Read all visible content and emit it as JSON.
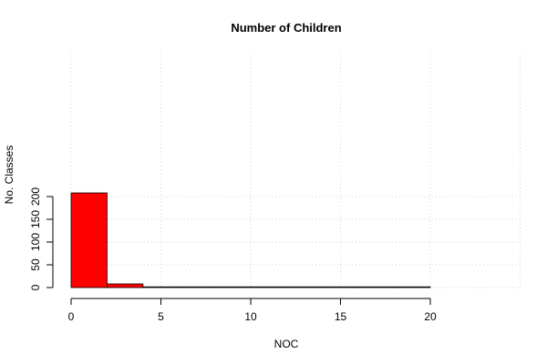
{
  "chart_data": {
    "type": "bar",
    "subtype": "histogram",
    "title": "Number of Children",
    "xlabel": "NOC",
    "ylabel": "No. Classes",
    "bins": [
      {
        "x0": 0,
        "x1": 2,
        "count": 208
      },
      {
        "x0": 2,
        "x1": 4,
        "count": 8
      },
      {
        "x0": 4,
        "x1": 6,
        "count": 0
      },
      {
        "x0": 6,
        "x1": 8,
        "count": 1
      },
      {
        "x0": 8,
        "x1": 10,
        "count": 1
      },
      {
        "x0": 10,
        "x1": 12,
        "count": 1
      },
      {
        "x0": 12,
        "x1": 14,
        "count": 0
      },
      {
        "x0": 14,
        "x1": 16,
        "count": 0
      },
      {
        "x0": 16,
        "x1": 18,
        "count": 0
      },
      {
        "x0": 18,
        "x1": 20,
        "count": 1
      }
    ],
    "xlim": [
      0,
      25
    ],
    "ylim": [
      0,
      210
    ],
    "x_ticks": [
      "0",
      "5",
      "10",
      "15",
      "20"
    ],
    "x_tick_values": [
      0,
      5,
      10,
      15,
      20
    ],
    "y_ticks": [
      "0",
      "50",
      "100",
      "150",
      "200"
    ],
    "y_tick_values": [
      0,
      50,
      100,
      150,
      200
    ],
    "x_grid": [
      0,
      5,
      10,
      15,
      20,
      25
    ],
    "grid": true,
    "bar_color": "#ff0000",
    "border_color": "#000000",
    "legend": null
  }
}
